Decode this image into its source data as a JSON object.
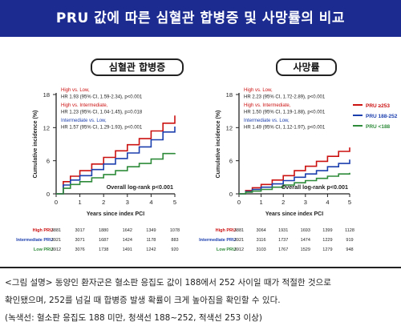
{
  "header": {
    "title": "PRU 값에 따른 심혈관 합병증 및 사망률의 비교"
  },
  "panels": [
    {
      "badge": "심혈관 합병증"
    },
    {
      "badge": "사망률"
    }
  ],
  "colors": {
    "high": "#cc1111",
    "intermediate": "#1c3fae",
    "low": "#2e8b3a",
    "title_bg": "#1b2b8f"
  },
  "chart_data": [
    {
      "type": "line",
      "title": "심혈관 합병증",
      "xlabel": "Years since index PCI",
      "ylabel": "Cumulative incidence (%)",
      "xlim": [
        0,
        5
      ],
      "ylim": [
        0,
        18
      ],
      "xticks": [
        "0",
        "1",
        "2",
        "3",
        "4",
        "5"
      ],
      "yticks": [
        "0",
        "6",
        "12",
        "18"
      ],
      "annotations": [
        {
          "lines": [
            {
              "text": "High vs. Low,",
              "color": "high",
              "bold": false
            },
            {
              "text": "HR 1.93 (95% CI, 1.59-2.34), p<0.001",
              "color": "dark",
              "bold": false
            }
          ]
        },
        {
          "lines": [
            {
              "text": "High vs. Intermediate,",
              "color": "high",
              "bold": false
            },
            {
              "text": "HR 1.23 (95% CI, 1.04-1.45), p=0.018",
              "color": "dark",
              "bold": false
            }
          ]
        },
        {
          "lines": [
            {
              "text": "Intermediate vs. Low,",
              "color": "intermediate",
              "bold": false
            },
            {
              "text": "HR 1.57 (95% CI, 1.29-1.93), p<0.001",
              "color": "dark",
              "bold": false
            }
          ]
        }
      ],
      "logrank": "Overall log-rank p<0.001",
      "series": [
        {
          "key": "high",
          "x": [
            0,
            0.3,
            0.6,
            1,
            1.5,
            2,
            2.5,
            3,
            3.5,
            4,
            4.5,
            5
          ],
          "y": [
            0,
            2.2,
            3.2,
            4.2,
            5.4,
            6.6,
            7.8,
            8.9,
            10,
            11.4,
            12.8,
            14.2
          ]
        },
        {
          "key": "intermediate",
          "x": [
            0,
            0.3,
            0.6,
            1,
            1.5,
            2,
            2.5,
            3,
            3.5,
            4,
            4.5,
            5
          ],
          "y": [
            0,
            1.6,
            2.5,
            3.3,
            4.4,
            5.4,
            6.4,
            7.4,
            8.5,
            9.8,
            11.2,
            12.2
          ]
        },
        {
          "key": "low",
          "x": [
            0,
            0.3,
            0.6,
            1,
            1.5,
            2,
            2.5,
            3,
            3.5,
            4,
            4.5,
            5
          ],
          "y": [
            0,
            1.0,
            1.7,
            2.2,
            2.9,
            3.5,
            4.2,
            4.9,
            5.5,
            6.3,
            7.3,
            7.4
          ]
        }
      ],
      "risk_table": {
        "labels": [
          "High PRU",
          "Intermediate PRU",
          "Low PRU"
        ],
        "rows": [
          [
            "3881",
            "3017",
            "1880",
            "1642",
            "1349",
            "1078"
          ],
          [
            "3921",
            "3071",
            "1687",
            "1424",
            "1178",
            "883"
          ],
          [
            "3912",
            "3076",
            "1738",
            "1491",
            "1242",
            "920"
          ]
        ]
      }
    },
    {
      "type": "line",
      "title": "사망률",
      "xlabel": "Years since index PCI",
      "ylabel": "Cumulative incidence (%)",
      "xlim": [
        0,
        5
      ],
      "ylim": [
        0,
        18
      ],
      "xticks": [
        "0",
        "1",
        "2",
        "3",
        "4",
        "5"
      ],
      "yticks": [
        "0",
        "6",
        "12",
        "18"
      ],
      "annotations": [
        {
          "lines": [
            {
              "text": "High vs. Low,",
              "color": "high",
              "bold": false
            },
            {
              "text": "HR 2.23 (95% CI, 1.72-2.89), p<0.001",
              "color": "dark",
              "bold": false
            }
          ]
        },
        {
          "lines": [
            {
              "text": "High vs. Intermediate,",
              "color": "high",
              "bold": false
            },
            {
              "text": "HR 1.50 (95% CI, 1.19-1.88), p<0.001",
              "color": "dark",
              "bold": false
            }
          ]
        },
        {
          "lines": [
            {
              "text": "Intermediate vs. Low,",
              "color": "intermediate",
              "bold": false
            },
            {
              "text": "HR 1.49 (95% CI, 1.12-1.97), p<0.001",
              "color": "dark",
              "bold": false
            }
          ]
        }
      ],
      "logrank": "Overall log-rank p<0.001",
      "legend": [
        {
          "key": "high",
          "label": "PRU ≥253"
        },
        {
          "key": "intermediate",
          "label": "PRU 188-252"
        },
        {
          "key": "low",
          "label": "PRU <188"
        }
      ],
      "series": [
        {
          "key": "high",
          "x": [
            0,
            0.3,
            0.6,
            1,
            1.5,
            2,
            2.5,
            3,
            3.5,
            4,
            4.5,
            5
          ],
          "y": [
            0,
            0.6,
            1.1,
            1.7,
            2.5,
            3.3,
            4.2,
            5.0,
            5.9,
            6.8,
            7.7,
            8.4
          ]
        },
        {
          "key": "intermediate",
          "x": [
            0,
            0.3,
            0.6,
            1,
            1.5,
            2,
            2.5,
            3,
            3.5,
            4,
            4.5,
            5
          ],
          "y": [
            0,
            0.4,
            0.8,
            1.2,
            1.8,
            2.4,
            3.0,
            3.6,
            4.2,
            4.9,
            5.5,
            6.2
          ]
        },
        {
          "key": "low",
          "x": [
            0,
            0.3,
            0.6,
            1,
            1.5,
            2,
            2.5,
            3,
            3.5,
            4,
            4.5,
            5
          ],
          "y": [
            0,
            0.3,
            0.5,
            0.8,
            1.2,
            1.6,
            2.0,
            2.4,
            2.8,
            3.2,
            3.6,
            3.8
          ]
        }
      ],
      "risk_table": {
        "labels": [
          "High PRU",
          "Intermediate PRU",
          "Low PRU"
        ],
        "rows": [
          [
            "3881",
            "3064",
            "1931",
            "1693",
            "1399",
            "1128"
          ],
          [
            "3921",
            "3116",
            "1737",
            "1474",
            "1229",
            "919"
          ],
          [
            "3912",
            "3103",
            "1767",
            "1529",
            "1279",
            "948"
          ]
        ]
      }
    }
  ],
  "caption": {
    "lines": [
      "<그림 설명> 동양인 환자군은 혈소판 응집도 값이 188에서 252 사이일 때가 적절한 것으로",
      "확인됐으며, 252를 넘길 때 합병증 발생 확률이 크게 높아짐을 확인할 수 있다.",
      "(녹색선: 혈소판 응집도 188 미만, 청색선 188~252, 적색선 253 이상)"
    ]
  }
}
